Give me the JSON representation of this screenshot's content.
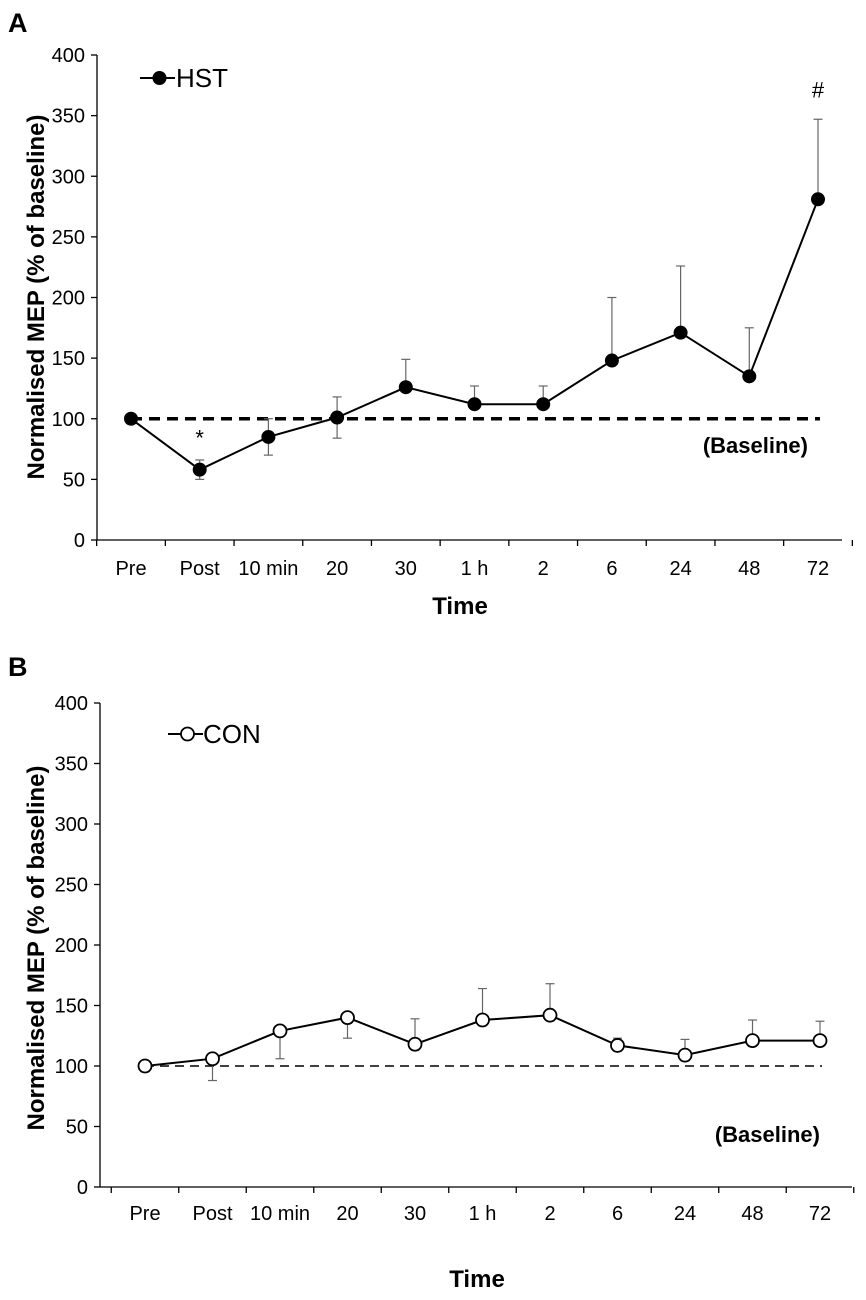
{
  "chart_data": [
    {
      "panel": "A",
      "type": "line",
      "xlabel": "Time",
      "ylabel": "Normalised MEP (% of baseline)",
      "ylim": [
        0,
        400
      ],
      "yticks": [
        0,
        50,
        100,
        150,
        200,
        250,
        300,
        350,
        400
      ],
      "categories": [
        "Pre",
        "Post",
        "10 min",
        "20",
        "30",
        "1 h",
        "2",
        "6",
        "24",
        "48",
        "72"
      ],
      "series": [
        {
          "name": "HST",
          "marker": "filled-circle",
          "values": [
            100,
            58,
            85,
            101,
            126,
            112,
            112,
            148,
            171,
            135,
            281
          ],
          "error_upper": [
            0,
            8,
            15,
            17,
            23,
            15,
            15,
            52,
            55,
            40,
            66
          ],
          "error_lower": [
            0,
            8,
            15,
            17,
            0,
            0,
            0,
            0,
            0,
            0,
            0
          ]
        }
      ],
      "baseline": {
        "value": 100,
        "label": "(Baseline)",
        "style": "thick-dashed"
      },
      "annotations": [
        {
          "index": 1,
          "text": "*"
        },
        {
          "index": 10,
          "text": "#"
        }
      ],
      "legend_position": "top-left"
    },
    {
      "panel": "B",
      "type": "line",
      "xlabel": "Time",
      "ylabel": "Normalised MEP (% of baseline)",
      "ylim": [
        0,
        400
      ],
      "yticks": [
        0,
        50,
        100,
        150,
        200,
        250,
        300,
        350,
        400
      ],
      "categories": [
        "Pre",
        "Post",
        "10 min",
        "20",
        "30",
        "1 h",
        "2",
        "6",
        "24",
        "48",
        "72"
      ],
      "series": [
        {
          "name": "CON",
          "marker": "open-circle",
          "values": [
            100,
            106,
            129,
            140,
            118,
            138,
            142,
            117,
            109,
            121,
            121
          ],
          "error_upper": [
            0,
            0,
            0,
            0,
            21,
            26,
            26,
            6,
            13,
            17,
            16
          ],
          "error_lower": [
            0,
            18,
            23,
            17,
            0,
            0,
            0,
            0,
            0,
            0,
            0
          ]
        }
      ],
      "baseline": {
        "value": 100,
        "label": "(Baseline)",
        "style": "thin-dashed"
      },
      "annotations": [],
      "legend_position": "top-left"
    }
  ]
}
